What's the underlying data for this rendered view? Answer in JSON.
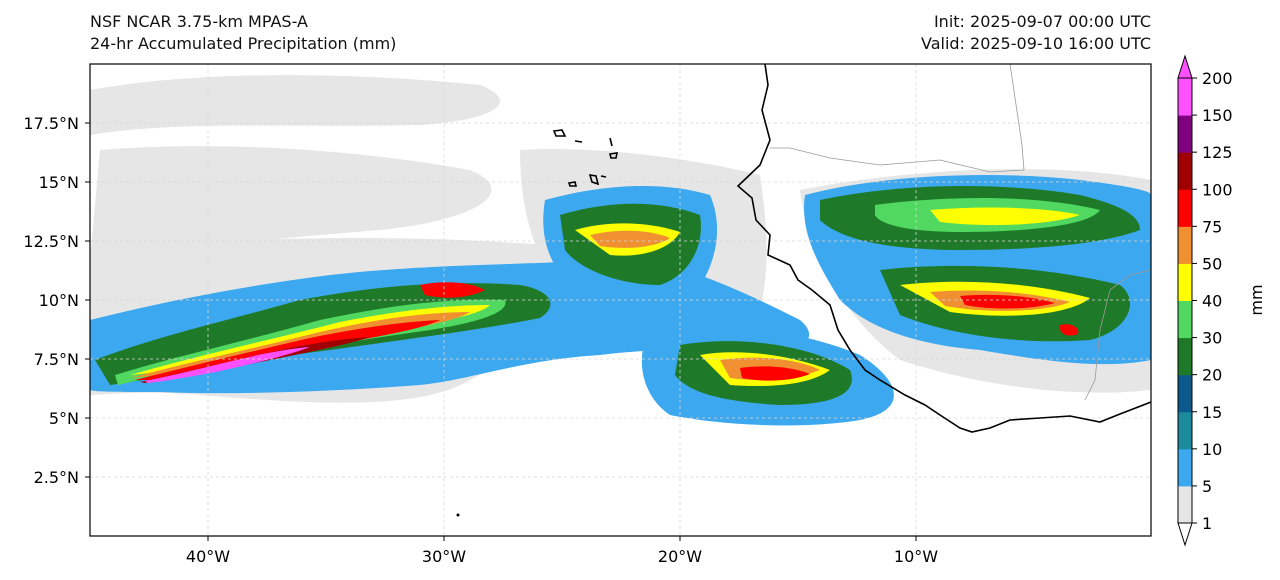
{
  "header": {
    "model_title": "NSF NCAR 3.75-km MPAS-A",
    "field_title": "24-hr Accumulated Precipitation (mm)",
    "init_text": "Init: 2025-09-07 00:00 UTC",
    "valid_text": "Valid: 2025-09-10 16:00 UTC"
  },
  "map": {
    "lon_ticks": [
      "40°W",
      "30°W",
      "20°W",
      "10°W"
    ],
    "lat_ticks": [
      "17.5°N",
      "15°N",
      "12.5°N",
      "10°N",
      "7.5°N",
      "5°N",
      "2.5°N"
    ]
  },
  "colorbar": {
    "label": "mm",
    "levels": [
      "1",
      "5",
      "10",
      "15",
      "20",
      "30",
      "40",
      "50",
      "75",
      "100",
      "125",
      "150",
      "200"
    ],
    "colors": [
      "#e6e6e6",
      "#3ca8f0",
      "#1b8a9c",
      "#0c5a8c",
      "#1e7a28",
      "#50d860",
      "#ffff00",
      "#f09030",
      "#ff0000",
      "#a00000",
      "#800080",
      "#ff50ff"
    ]
  },
  "chart_data": {
    "type": "heatmap",
    "title": "24-hr Accumulated Precipitation (mm)",
    "x_range_deg_lon": [
      -45,
      0
    ],
    "y_range_deg_lat": [
      0,
      20
    ],
    "units": "mm"
  }
}
